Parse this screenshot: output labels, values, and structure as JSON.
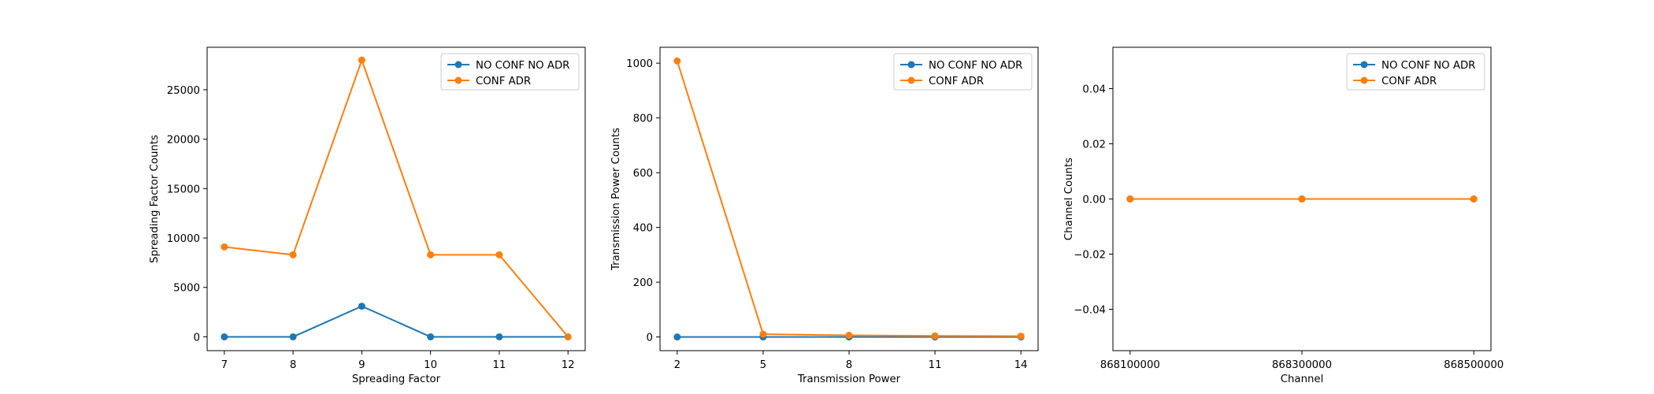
{
  "colors": {
    "series_0": "#1f77b4",
    "series_1": "#ff7f0e"
  },
  "chart_data": [
    {
      "type": "line",
      "xlabel": "Spreading Factor",
      "ylabel": "Spreading Factor Counts",
      "x": [
        7,
        8,
        9,
        10,
        11,
        12
      ],
      "xlim": [
        6.75,
        12.25
      ],
      "xticks": [
        "7",
        "8",
        "9",
        "10",
        "11",
        "12"
      ],
      "ylim": [
        -1400,
        29300
      ],
      "yticks": [
        0,
        5000,
        10000,
        15000,
        20000,
        25000
      ],
      "ytick_labels": [
        "0",
        "5000",
        "10000",
        "15000",
        "20000",
        "25000"
      ],
      "legend": "top-right",
      "grid": false,
      "series": [
        {
          "name": "NO CONF NO ADR",
          "values": [
            0,
            0,
            3100,
            0,
            0,
            0
          ]
        },
        {
          "name": "CONF ADR",
          "values": [
            9100,
            8300,
            28000,
            8300,
            8300,
            0
          ]
        }
      ]
    },
    {
      "type": "line",
      "xlabel": "Transmission Power",
      "ylabel": "Transmission Power Counts",
      "x": [
        2,
        5,
        8,
        11,
        14
      ],
      "xlim": [
        1.4,
        14.6
      ],
      "xticks": [
        "2",
        "5",
        "8",
        "11",
        "14"
      ],
      "ylim": [
        -50,
        1058
      ],
      "yticks": [
        0,
        200,
        400,
        600,
        800,
        1000
      ],
      "ytick_labels": [
        "0",
        "200",
        "400",
        "600",
        "800",
        "1000"
      ],
      "legend": "top-right",
      "grid": false,
      "series": [
        {
          "name": "NO CONF NO ADR",
          "values": [
            0,
            0,
            0,
            0,
            0
          ]
        },
        {
          "name": "CONF ADR",
          "values": [
            1008,
            10,
            6,
            4,
            3
          ]
        }
      ]
    },
    {
      "type": "line",
      "xlabel": "Channel",
      "ylabel": "Channel Counts",
      "x": [
        868100000,
        868300000,
        868500000
      ],
      "xlim": [
        868080000,
        868520000
      ],
      "xticks": [
        "868100000",
        "868300000",
        "868500000"
      ],
      "ylim": [
        -0.055,
        0.055
      ],
      "yticks": [
        -0.04,
        -0.02,
        0,
        0.02,
        0.04
      ],
      "ytick_labels": [
        "−0.04",
        "−0.02",
        "0.00",
        "0.02",
        "0.04"
      ],
      "legend": "top-right",
      "grid": false,
      "series": [
        {
          "name": "NO CONF NO ADR",
          "values": [
            0,
            0,
            0
          ]
        },
        {
          "name": "CONF ADR",
          "values": [
            0,
            0,
            0
          ]
        }
      ]
    }
  ]
}
